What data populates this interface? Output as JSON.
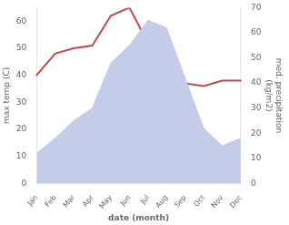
{
  "chart_data": {
    "type": "line",
    "categories": [
      "Jan",
      "Feb",
      "Mar",
      "Apr",
      "May",
      "Jun",
      "Jul",
      "Aug",
      "Sep",
      "Oct",
      "Nov",
      "Dec"
    ],
    "series": [
      {
        "type": "area",
        "color": "#c5cce8",
        "axis": "y2",
        "values": [
          12,
          18,
          25,
          30,
          48,
          55,
          65,
          62,
          42,
          22,
          15,
          18
        ]
      },
      {
        "type": "line",
        "color": "#c0474a",
        "axis": "y",
        "values": [
          40,
          48,
          50,
          51,
          62,
          65,
          52,
          38,
          37,
          36,
          38,
          38
        ]
      }
    ],
    "xlabel": "date (month)",
    "ylabel": "max temp (C)",
    "y2label": "med. precipitation\n(kg/m2)",
    "ylim": [
      0,
      65
    ],
    "yticks": [
      0,
      10,
      20,
      30,
      40,
      50,
      60
    ],
    "y2lim": [
      0,
      70
    ],
    "y2ticks": [
      0,
      10,
      20,
      30,
      40,
      50,
      60,
      70
    ],
    "grid": false
  }
}
